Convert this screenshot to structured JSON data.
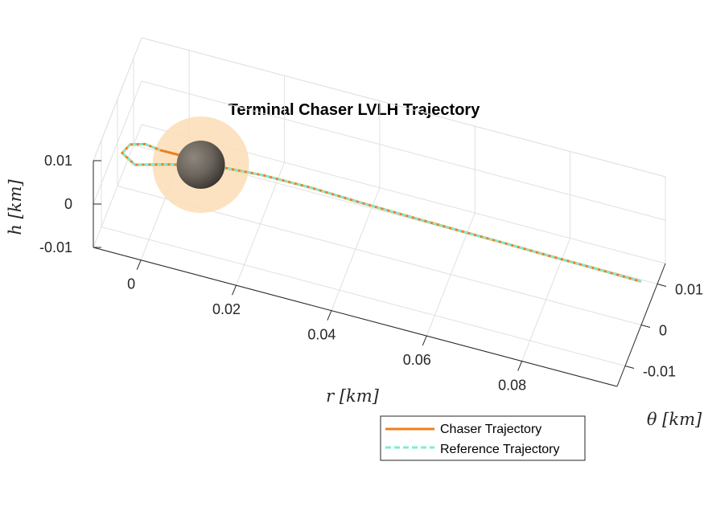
{
  "chart_data": {
    "type": "line",
    "projection": "3d",
    "title": "Terminal Chaser LVLH Trajectory",
    "xlabel": "r [km]",
    "ylabel": "θ [km]",
    "zlabel": "h [km]",
    "xlim": [
      -0.01,
      0.1
    ],
    "ylim": [
      -0.015,
      0.015
    ],
    "zlim": [
      -0.01,
      0.01
    ],
    "x_ticks": [
      "0",
      "0.02",
      "0.04",
      "0.06",
      "0.08"
    ],
    "y_ticks": [
      "-0.01",
      "0",
      "0.01"
    ],
    "z_ticks": [
      "-0.01",
      "0",
      "0.01"
    ],
    "grid": true,
    "legend_position": "bottom-right",
    "series": [
      {
        "name": "Chaser Trajectory",
        "color": "#EE7F1C",
        "line_style": "solid",
        "points": [
          [
            0.1,
            0,
            0
          ],
          [
            0.09,
            0.0002,
            0
          ],
          [
            0.08,
            0.0003,
            0
          ],
          [
            0.07,
            0.0005,
            0
          ],
          [
            0.06,
            0.0006,
            0
          ],
          [
            0.05,
            0.0008,
            0
          ],
          [
            0.04,
            0.001,
            0
          ],
          [
            0.03,
            0.0014,
            0
          ],
          [
            0.02,
            0.0018,
            -0.0005
          ],
          [
            0.01,
            0.0025,
            -0.002
          ],
          [
            0.0,
            0.002,
            -0.004
          ],
          [
            -0.006,
            -0.001,
            -0.003
          ],
          [
            -0.008,
            -0.003,
            0.001
          ],
          [
            -0.006,
            -0.004,
            0.0045
          ],
          [
            -0.003,
            -0.0035,
            0.005
          ],
          [
            0.0,
            -0.003,
            0.004
          ],
          [
            0.004,
            -0.002,
            0.003
          ],
          [
            0.006,
            -0.001,
            0.002
          ],
          [
            0.0075,
            -0.0003,
            0.0012
          ]
        ]
      },
      {
        "name": "Reference Trajectory",
        "color": "#7EEDD5",
        "line_style": "dashed",
        "points": [
          [
            0.1,
            0,
            0
          ],
          [
            0.09,
            0.0002,
            0
          ],
          [
            0.08,
            0.0003,
            0
          ],
          [
            0.07,
            0.0005,
            0
          ],
          [
            0.06,
            0.0006,
            0
          ],
          [
            0.05,
            0.0008,
            0
          ],
          [
            0.04,
            0.001,
            0
          ],
          [
            0.03,
            0.0014,
            0
          ],
          [
            0.02,
            0.0018,
            -0.0005
          ],
          [
            0.01,
            0.0025,
            -0.002
          ],
          [
            0.0,
            0.002,
            -0.004
          ],
          [
            -0.006,
            -0.001,
            -0.003
          ],
          [
            -0.008,
            -0.003,
            0.001
          ],
          [
            -0.006,
            -0.004,
            0.0045
          ],
          [
            -0.003,
            -0.0035,
            0.005
          ],
          [
            0.0,
            -0.003,
            0.004
          ]
        ]
      }
    ],
    "target_sphere": {
      "center": [
        0.0075,
        0,
        0
      ],
      "color": "#6E665E"
    },
    "keep_out_zone": {
      "center": [
        0.0075,
        0,
        0
      ],
      "color": "#FBDDB6"
    }
  }
}
